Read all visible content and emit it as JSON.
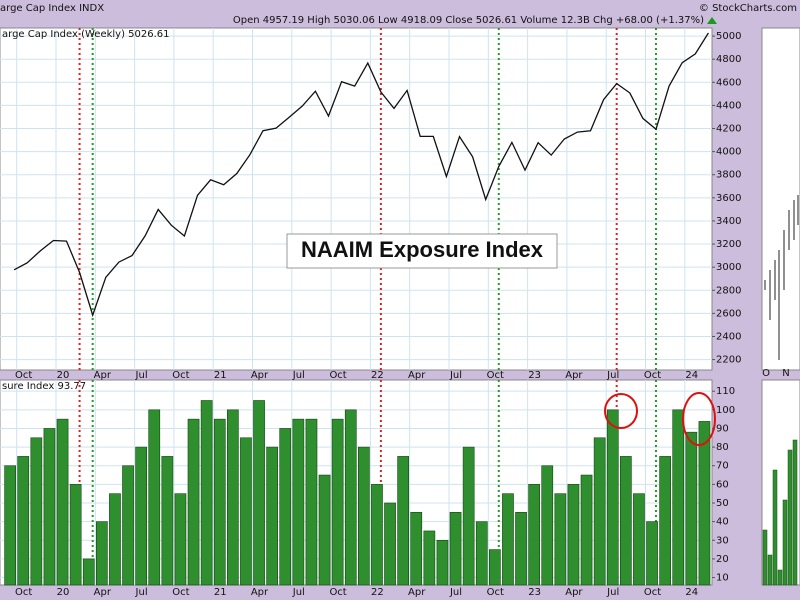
{
  "header": {
    "symbol": "arge Cap Index  INDX",
    "copyright": "© StockCharts.com",
    "quote": "Open 4957.19  High 5030.06  Low 4918.09  Close 5026.61  Volume 12.3B  Chg +68.00 (+1.37%)"
  },
  "annotation": "NAAIM Exposure Index",
  "side_panel_labels": [
    "O",
    "N"
  ],
  "chart_data": [
    {
      "type": "line",
      "title": "arge Cap Index (Weekly) 5026.61",
      "color": "#111111",
      "grid": true,
      "x": [
        "2019-09",
        "2019-10",
        "2019-11",
        "2019-12",
        "2020-01",
        "2020-02",
        "2020-03",
        "2020-04",
        "2020-05",
        "2020-06",
        "2020-07",
        "2020-08",
        "2020-09",
        "2020-10",
        "2020-11",
        "2020-12",
        "2021-01",
        "2021-02",
        "2021-03",
        "2021-04",
        "2021-05",
        "2021-06",
        "2021-07",
        "2021-08",
        "2021-09",
        "2021-10",
        "2021-11",
        "2021-12",
        "2022-01",
        "2022-02",
        "2022-03",
        "2022-04",
        "2022-05",
        "2022-06",
        "2022-07",
        "2022-08",
        "2022-09",
        "2022-10",
        "2022-11",
        "2022-12",
        "2023-01",
        "2023-02",
        "2023-03",
        "2023-04",
        "2023-05",
        "2023-06",
        "2023-07",
        "2023-08",
        "2023-09",
        "2023-10",
        "2023-11",
        "2023-12",
        "2024-01",
        "2024-02"
      ],
      "values": [
        2977,
        3038,
        3141,
        3231,
        3226,
        2954,
        2585,
        2912,
        3044,
        3100,
        3271,
        3500,
        3363,
        3270,
        3622,
        3756,
        3714,
        3811,
        3973,
        4181,
        4204,
        4298,
        4395,
        4523,
        4308,
        4605,
        4567,
        4766,
        4516,
        4374,
        4530,
        4132,
        4132,
        3785,
        4130,
        3955,
        3586,
        3872,
        4080,
        3840,
        4077,
        3970,
        4109,
        4169,
        4180,
        4450,
        4589,
        4508,
        4288,
        4194,
        4568,
        4770,
        4846,
        5027
      ],
      "ylim": [
        2110,
        5070
      ],
      "yticks": [
        2200,
        2400,
        2600,
        2800,
        3000,
        3200,
        3400,
        3600,
        3800,
        4000,
        4200,
        4400,
        4600,
        4800,
        5000
      ],
      "xticks": [
        {
          "value": "2019-10",
          "label": "Oct"
        },
        {
          "value": "2020-01",
          "label": "20"
        },
        {
          "value": "2020-04",
          "label": "Apr"
        },
        {
          "value": "2020-07",
          "label": "Jul"
        },
        {
          "value": "2020-10",
          "label": "Oct"
        },
        {
          "value": "2021-01",
          "label": "21"
        },
        {
          "value": "2021-04",
          "label": "Apr"
        },
        {
          "value": "2021-07",
          "label": "Jul"
        },
        {
          "value": "2021-10",
          "label": "Oct"
        },
        {
          "value": "2022-01",
          "label": "22"
        },
        {
          "value": "2022-04",
          "label": "Apr"
        },
        {
          "value": "2022-07",
          "label": "Jul"
        },
        {
          "value": "2022-10",
          "label": "Oct"
        },
        {
          "value": "2023-01",
          "label": "23"
        },
        {
          "value": "2023-04",
          "label": "Apr"
        },
        {
          "value": "2023-07",
          "label": "Jul"
        },
        {
          "value": "2023-10",
          "label": "Oct"
        },
        {
          "value": "2024-01",
          "label": "24"
        }
      ],
      "markers": [
        {
          "x": "2020-02",
          "color": "#e02020"
        },
        {
          "x": "2020-03",
          "color": "#20a020"
        },
        {
          "x": "2022-01",
          "color": "#e02020"
        },
        {
          "x": "2022-10",
          "color": "#20a020"
        },
        {
          "x": "2023-07",
          "color": "#e02020"
        },
        {
          "x": "2023-10",
          "color": "#20a020"
        }
      ]
    },
    {
      "type": "bar",
      "title": "sure Index 93.77",
      "color": "#2f8f2f",
      "grid": true,
      "x": [
        "2019-09",
        "2019-10",
        "2019-11",
        "2019-12",
        "2020-01",
        "2020-02",
        "2020-03",
        "2020-04",
        "2020-05",
        "2020-06",
        "2020-07",
        "2020-08",
        "2020-09",
        "2020-10",
        "2020-11",
        "2020-12",
        "2021-01",
        "2021-02",
        "2021-03",
        "2021-04",
        "2021-05",
        "2021-06",
        "2021-07",
        "2021-08",
        "2021-09",
        "2021-10",
        "2021-11",
        "2021-12",
        "2022-01",
        "2022-02",
        "2022-03",
        "2022-04",
        "2022-05",
        "2022-06",
        "2022-07",
        "2022-08",
        "2022-09",
        "2022-10",
        "2022-11",
        "2022-12",
        "2023-01",
        "2023-02",
        "2023-03",
        "2023-04",
        "2023-05",
        "2023-06",
        "2023-07",
        "2023-08",
        "2023-09",
        "2023-10",
        "2023-11",
        "2023-12",
        "2024-01",
        "2024-02"
      ],
      "values": [
        70,
        75,
        85,
        90,
        95,
        60,
        20,
        40,
        55,
        70,
        80,
        100,
        75,
        55,
        95,
        105,
        95,
        100,
        85,
        105,
        80,
        90,
        95,
        95,
        65,
        95,
        100,
        80,
        60,
        50,
        75,
        45,
        35,
        30,
        45,
        80,
        40,
        25,
        55,
        45,
        60,
        70,
        55,
        60,
        65,
        85,
        100,
        75,
        55,
        40,
        75,
        100,
        88,
        93.77
      ],
      "ylim": [
        6,
        116
      ],
      "yticks": [
        10,
        20,
        30,
        40,
        50,
        60,
        70,
        80,
        90,
        100,
        110
      ],
      "xticks": [
        {
          "value": "2019-10",
          "label": "Oct"
        },
        {
          "value": "2020-01",
          "label": "20"
        },
        {
          "value": "2020-04",
          "label": "Apr"
        },
        {
          "value": "2020-07",
          "label": "Jul"
        },
        {
          "value": "2020-10",
          "label": "Oct"
        },
        {
          "value": "2021-01",
          "label": "21"
        },
        {
          "value": "2021-04",
          "label": "Apr"
        },
        {
          "value": "2021-07",
          "label": "Jul"
        },
        {
          "value": "2021-10",
          "label": "Oct"
        },
        {
          "value": "2022-01",
          "label": "22"
        },
        {
          "value": "2022-04",
          "label": "Apr"
        },
        {
          "value": "2022-07",
          "label": "Jul"
        },
        {
          "value": "2022-10",
          "label": "Oct"
        },
        {
          "value": "2023-01",
          "label": "23"
        },
        {
          "value": "2023-04",
          "label": "Apr"
        },
        {
          "value": "2023-07",
          "label": "Jul"
        },
        {
          "value": "2023-10",
          "label": "Oct"
        },
        {
          "value": "2024-01",
          "label": "24"
        }
      ],
      "markers": [
        {
          "x": "2020-02",
          "color": "#e02020"
        },
        {
          "x": "2020-03",
          "color": "#20a020"
        },
        {
          "x": "2022-01",
          "color": "#e02020"
        },
        {
          "x": "2022-10",
          "color": "#20a020"
        },
        {
          "x": "2023-07",
          "color": "#e02020"
        },
        {
          "x": "2023-10",
          "color": "#20a020"
        }
      ]
    }
  ]
}
